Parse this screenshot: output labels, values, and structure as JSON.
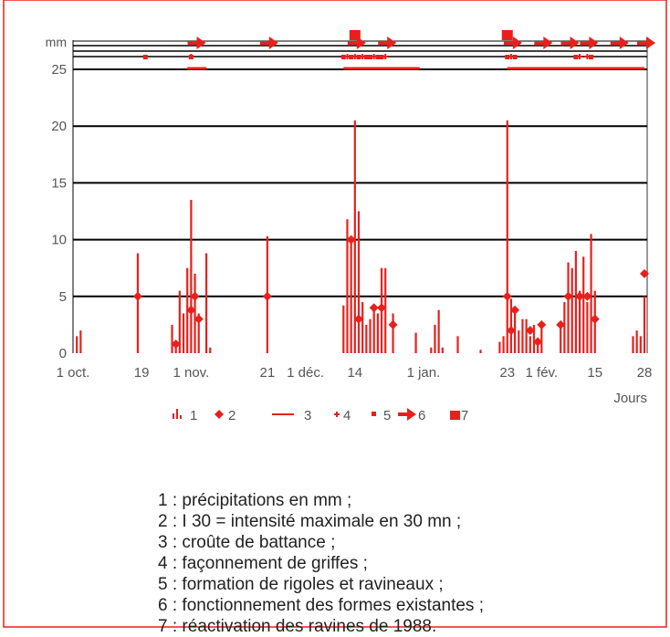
{
  "chart_data": {
    "type": "bar",
    "ylabel": "mm",
    "xlabel": "Jours",
    "ylim": [
      0,
      27
    ],
    "yticks": [
      0,
      5,
      10,
      15,
      20,
      25
    ],
    "date_range": [
      "1988-10-01",
      "1989-02-28"
    ],
    "x_ticks": [
      {
        "label": "1 oct.",
        "date": "1988-10-01"
      },
      {
        "label": "19",
        "date": "1988-10-19"
      },
      {
        "label": "1 nov.",
        "date": "1988-11-01"
      },
      {
        "label": "21",
        "date": "1988-11-21"
      },
      {
        "label": "1 déc.",
        "date": "1988-12-01"
      },
      {
        "label": "14",
        "date": "1988-12-14"
      },
      {
        "label": "1 jan.",
        "date": "1989-01-01"
      },
      {
        "label": "23",
        "date": "1989-01-23"
      },
      {
        "label": "1 fév.",
        "date": "1989-02-01"
      },
      {
        "label": "15",
        "date": "1989-02-15"
      },
      {
        "label": "28",
        "date": "1989-02-28"
      }
    ],
    "colors": {
      "data": "#e8201c",
      "grid": "#000000",
      "frame": "#e8201c",
      "axis_text": "#555555"
    },
    "series": [
      {
        "key": "1",
        "name": "précipitations en mm",
        "kind": "bars",
        "points": [
          {
            "date": "1988-10-02",
            "value": 1.5
          },
          {
            "date": "1988-10-03",
            "value": 2.0
          },
          {
            "date": "1988-10-18",
            "value": 8.8
          },
          {
            "date": "1988-10-27",
            "value": 2.5
          },
          {
            "date": "1988-10-28",
            "value": 1.0
          },
          {
            "date": "1988-10-29",
            "value": 5.5
          },
          {
            "date": "1988-10-30",
            "value": 3.5
          },
          {
            "date": "1988-10-31",
            "value": 7.5
          },
          {
            "date": "1988-11-01",
            "value": 13.5
          },
          {
            "date": "1988-11-02",
            "value": 7.0
          },
          {
            "date": "1988-11-03",
            "value": 3.5
          },
          {
            "date": "1988-11-05",
            "value": 8.8
          },
          {
            "date": "1988-11-06",
            "value": 0.5
          },
          {
            "date": "1988-11-21",
            "value": 10.3
          },
          {
            "date": "1988-12-11",
            "value": 4.2
          },
          {
            "date": "1988-12-12",
            "value": 11.8
          },
          {
            "date": "1988-12-13",
            "value": 10.0
          },
          {
            "date": "1988-12-14",
            "value": 20.5
          },
          {
            "date": "1988-12-15",
            "value": 12.5
          },
          {
            "date": "1988-12-16",
            "value": 4.5
          },
          {
            "date": "1988-12-17",
            "value": 2.5
          },
          {
            "date": "1988-12-18",
            "value": 3.0
          },
          {
            "date": "1988-12-19",
            "value": 4.0
          },
          {
            "date": "1988-12-20",
            "value": 3.5
          },
          {
            "date": "1988-12-21",
            "value": 7.5
          },
          {
            "date": "1988-12-22",
            "value": 7.5
          },
          {
            "date": "1988-12-24",
            "value": 3.5
          },
          {
            "date": "1988-12-30",
            "value": 1.8
          },
          {
            "date": "1989-01-03",
            "value": 0.5
          },
          {
            "date": "1989-01-04",
            "value": 2.5
          },
          {
            "date": "1989-01-05",
            "value": 3.8
          },
          {
            "date": "1989-01-06",
            "value": 0.5
          },
          {
            "date": "1989-01-10",
            "value": 1.5
          },
          {
            "date": "1989-01-16",
            "value": 0.3
          },
          {
            "date": "1989-01-21",
            "value": 1.0
          },
          {
            "date": "1989-01-22",
            "value": 1.5
          },
          {
            "date": "1989-01-23",
            "value": 20.5
          },
          {
            "date": "1989-01-24",
            "value": 4.8
          },
          {
            "date": "1989-01-25",
            "value": 3.5
          },
          {
            "date": "1989-01-26",
            "value": 2.0
          },
          {
            "date": "1989-01-27",
            "value": 3.0
          },
          {
            "date": "1989-01-28",
            "value": 3.0
          },
          {
            "date": "1989-01-29",
            "value": 1.5
          },
          {
            "date": "1989-01-30",
            "value": 2.5
          },
          {
            "date": "1989-01-31",
            "value": 1.2
          },
          {
            "date": "1989-02-01",
            "value": 2.5
          },
          {
            "date": "1989-02-06",
            "value": 2.5
          },
          {
            "date": "1989-02-07",
            "value": 4.5
          },
          {
            "date": "1989-02-08",
            "value": 8.0
          },
          {
            "date": "1989-02-09",
            "value": 7.5
          },
          {
            "date": "1989-02-10",
            "value": 9.0
          },
          {
            "date": "1989-02-11",
            "value": 5.5
          },
          {
            "date": "1989-02-12",
            "value": 8.5
          },
          {
            "date": "1989-02-13",
            "value": 4.5
          },
          {
            "date": "1989-02-14",
            "value": 10.5
          },
          {
            "date": "1989-02-15",
            "value": 5.5
          },
          {
            "date": "1989-02-25",
            "value": 1.5
          },
          {
            "date": "1989-02-26",
            "value": 2.0
          },
          {
            "date": "1989-02-27",
            "value": 1.5
          },
          {
            "date": "1989-02-28",
            "value": 5.0
          }
        ]
      },
      {
        "key": "2",
        "name": "I 30 = intensité maximale en 30 mn",
        "kind": "points",
        "points": [
          {
            "date": "1988-10-18",
            "value": 5.0
          },
          {
            "date": "1988-10-28",
            "value": 0.8
          },
          {
            "date": "1988-11-01",
            "value": 3.8
          },
          {
            "date": "1988-11-02",
            "value": 5.0
          },
          {
            "date": "1988-11-03",
            "value": 3.0
          },
          {
            "date": "1988-11-21",
            "value": 5.0
          },
          {
            "date": "1988-12-13",
            "value": 10.0
          },
          {
            "date": "1988-12-15",
            "value": 3.0
          },
          {
            "date": "1988-12-19",
            "value": 4.0
          },
          {
            "date": "1988-12-21",
            "value": 4.0
          },
          {
            "date": "1988-12-24",
            "value": 2.5
          },
          {
            "date": "1989-01-23",
            "value": 5.0
          },
          {
            "date": "1989-01-24",
            "value": 2.0
          },
          {
            "date": "1989-01-25",
            "value": 3.8
          },
          {
            "date": "1989-01-29",
            "value": 2.0
          },
          {
            "date": "1989-01-31",
            "value": 1.0
          },
          {
            "date": "1989-02-01",
            "value": 2.5
          },
          {
            "date": "1989-02-06",
            "value": 2.5
          },
          {
            "date": "1989-02-08",
            "value": 5.0
          },
          {
            "date": "1989-02-11",
            "value": 5.0
          },
          {
            "date": "1989-02-13",
            "value": 5.0
          },
          {
            "date": "1989-02-15",
            "value": 3.0
          },
          {
            "date": "1989-02-28",
            "value": 7.0
          }
        ]
      },
      {
        "key": "3",
        "name": "croûte de battance",
        "kind": "periods",
        "periods": [
          [
            "1988-10-31",
            "1988-11-05"
          ],
          [
            "1988-12-11",
            "1988-12-31"
          ],
          [
            "1989-01-23",
            "1989-02-28"
          ]
        ]
      },
      {
        "key": "4",
        "name": "façonnement de griffes",
        "kind": "events",
        "dates": [
          "1988-11-01",
          "1988-12-12",
          "1988-12-14",
          "1988-12-16",
          "1988-12-19",
          "1988-12-22",
          "1989-01-24",
          "1989-02-11",
          "1989-02-13"
        ]
      },
      {
        "key": "5",
        "name": "formation de rigoles et ravineaux",
        "kind": "events",
        "dates": [
          "1988-10-20",
          "1988-11-01",
          "1988-12-11",
          "1988-12-13",
          "1988-12-15",
          "1988-12-17",
          "1988-12-18",
          "1988-12-20",
          "1988-12-21",
          "1989-01-23",
          "1989-01-25",
          "1989-02-10",
          "1989-02-14"
        ]
      },
      {
        "key": "6",
        "name": "fonctionnement des formes existantes",
        "kind": "events",
        "dates": [
          "1988-11-02",
          "1988-11-21",
          "1988-12-14",
          "1988-12-22",
          "1989-01-24",
          "1989-02-01",
          "1989-02-08",
          "1989-02-13",
          "1989-02-21",
          "1989-02-28"
        ]
      },
      {
        "key": "7",
        "name": "réactivation des ravines de 1988",
        "kind": "events",
        "dates": [
          "1988-12-14",
          "1989-01-23"
        ]
      }
    ]
  },
  "legend_text": [
    {
      "num": "1",
      "text": "précipitations en mm ;"
    },
    {
      "num": "2",
      "text": "I 30 = intensité maximale en 30 mn ;"
    },
    {
      "num": "3",
      "text": "croûte de battance ;"
    },
    {
      "num": "4",
      "text": "façonnement de griffes ;"
    },
    {
      "num": "5",
      "text": "formation de rigoles et ravineaux ;"
    },
    {
      "num": "6",
      "text": "fonctionnement des formes existantes ;"
    },
    {
      "num": "7",
      "text": "réactivation des ravines de 1988."
    }
  ]
}
